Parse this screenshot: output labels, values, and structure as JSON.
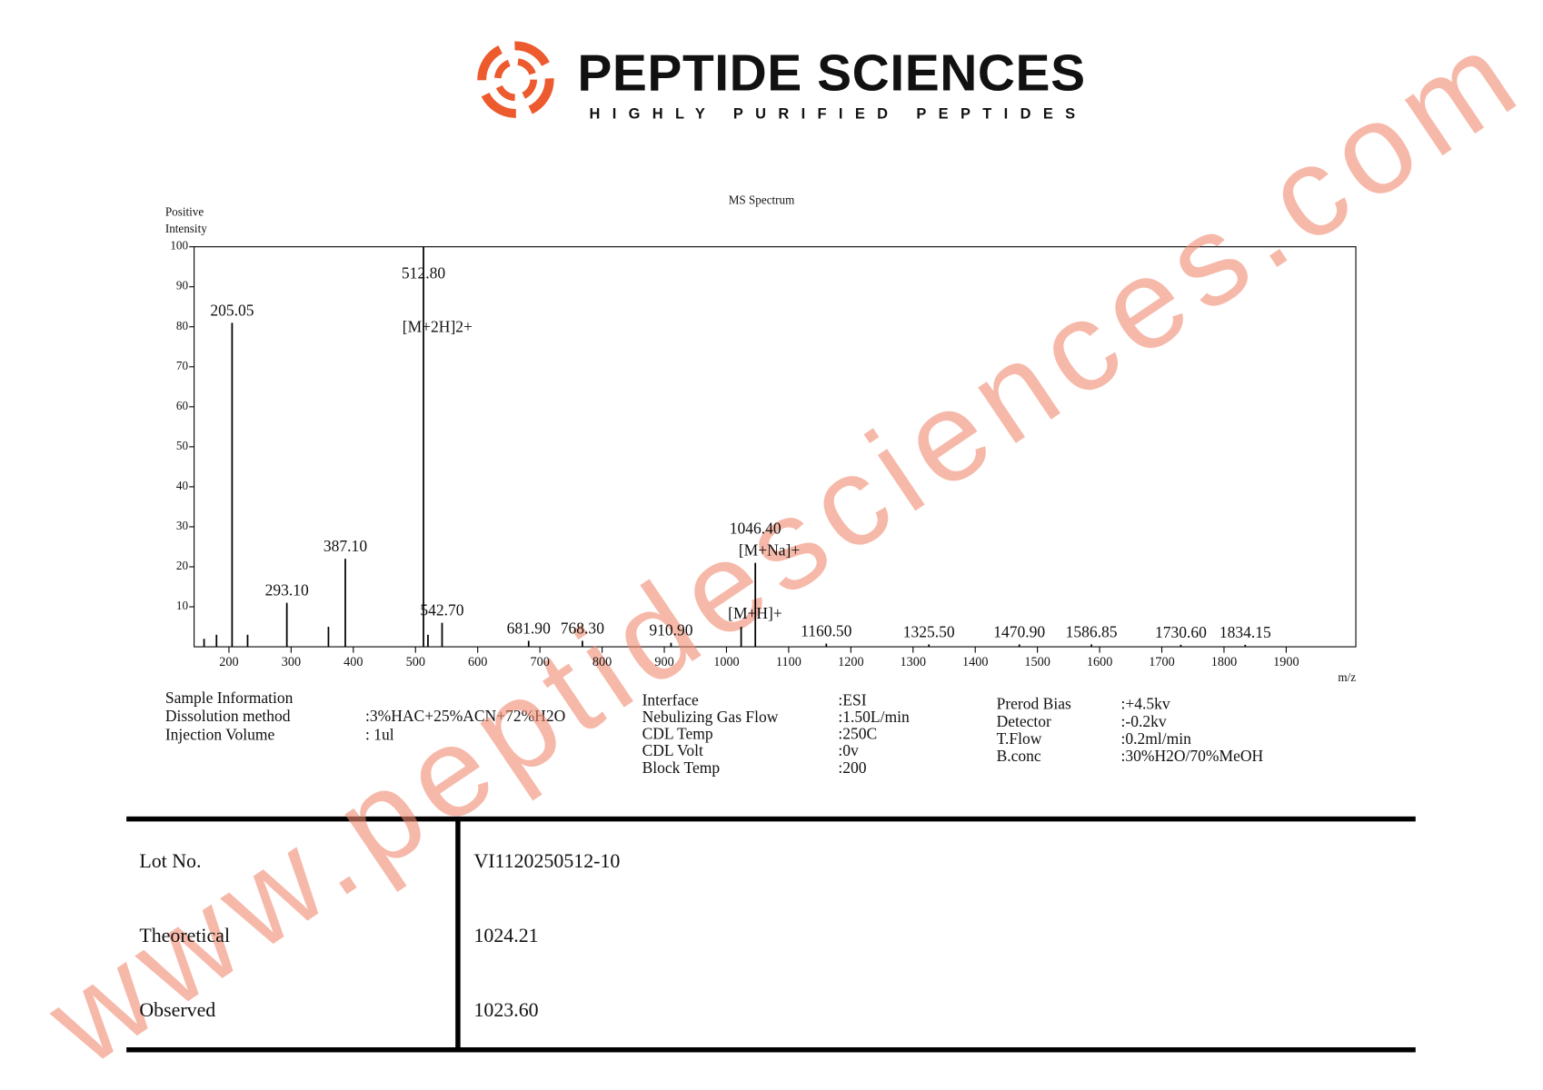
{
  "header": {
    "brand": "PEPTIDE SCIENCES",
    "tagline": "HIGHLY PURIFIED PEPTIDES"
  },
  "chart_data": {
    "type": "bar",
    "title": "MS Spectrum",
    "ylabel": [
      "Positive",
      "Intensity"
    ],
    "xlabel": "m/z",
    "color": "#000000",
    "x": [
      160,
      180,
      205.05,
      230,
      293.1,
      360,
      387.1,
      512.8,
      520,
      542.7,
      681.9,
      768.3,
      910.9,
      1023.6,
      1046.4,
      1160.5,
      1325.5,
      1470.9,
      1586.85,
      1730.6,
      1834.15
    ],
    "values": [
      2,
      3,
      81,
      3,
      11,
      5,
      22,
      100,
      3,
      6,
      1.5,
      1.5,
      1,
      5,
      21,
      0.8,
      0.6,
      0.6,
      0.6,
      0.5,
      0.5
    ],
    "peak_labels": [
      null,
      null,
      "205.05",
      null,
      "293.10",
      null,
      "387.10",
      "512.80",
      null,
      "542.70",
      "681.90",
      "768.30",
      "910.90",
      null,
      "1046.40",
      "1160.50",
      "1325.50",
      "1470.90",
      "1586.85",
      "1730.60",
      "1834.15"
    ],
    "annotations": [
      {
        "text": "[M+2H]2+",
        "x": 512.8
      },
      {
        "text": "[M+Na]+",
        "x": 1046.4
      },
      {
        "text": "[M+H]+",
        "x": 1023.6
      }
    ],
    "xlim": [
      144,
      2012
    ],
    "xticks": [
      200,
      300,
      400,
      500,
      600,
      700,
      800,
      900,
      1000,
      1100,
      1200,
      1300,
      1400,
      1500,
      1600,
      1700,
      1800,
      1900
    ],
    "ylim": [
      0,
      100
    ],
    "yticks": [
      10,
      20,
      30,
      40,
      50,
      60,
      70,
      80,
      90,
      100
    ]
  },
  "sample_info": {
    "heading": "Sample Information",
    "rows": [
      [
        "Dissolution method",
        ":3%HAC+25%ACN+72%H2O"
      ],
      [
        "Injection Volume",
        ": 1ul"
      ]
    ]
  },
  "instrument": {
    "rows": [
      [
        "Interface",
        ":ESI"
      ],
      [
        "Nebulizing Gas Flow",
        ":1.50L/min"
      ],
      [
        "CDL Temp",
        ":250C"
      ],
      [
        "CDL Volt",
        ":0v"
      ],
      [
        "Block Temp",
        ":200"
      ]
    ]
  },
  "conditions": {
    "rows": [
      [
        "Prerod Bias",
        ":+4.5kv"
      ],
      [
        "Detector",
        ":-0.2kv"
      ],
      [
        "T.Flow",
        ":0.2ml/min"
      ],
      [
        "B.conc",
        ":30%H2O/70%MeOH"
      ]
    ]
  },
  "table": {
    "rows": [
      [
        "Lot No.",
        "VI1120250512-10"
      ],
      [
        "Theoretical",
        "1024.21"
      ],
      [
        "Observed",
        "1023.60"
      ]
    ]
  },
  "watermark": "www.peptidesciences.com"
}
